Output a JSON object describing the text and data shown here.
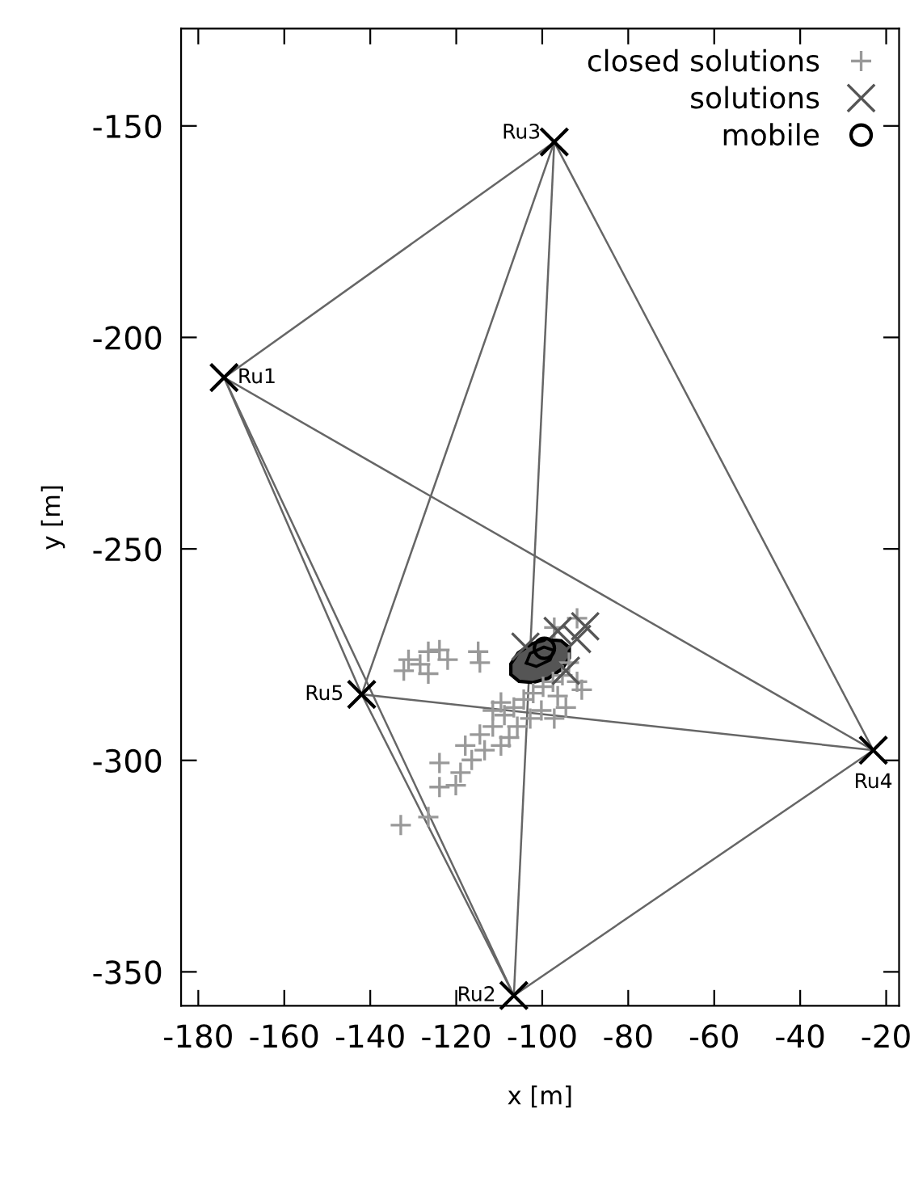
{
  "chart_data": {
    "type": "scatter",
    "xlabel": "x [m]",
    "ylabel": "y [m]",
    "xlim": [
      -184,
      -17
    ],
    "ylim": [
      -358,
      -127
    ],
    "xticks": [
      -180,
      -160,
      -140,
      -120,
      -100,
      -80,
      -60,
      -40,
      -20
    ],
    "yticks": [
      -350,
      -300,
      -250,
      -200,
      -150
    ],
    "grid": false,
    "legend": "top right",
    "series": [
      {
        "type": "line",
        "color": "#666666",
        "x": [
          -174.0,
          -97.2
        ],
        "values": [
          -209.5,
          -153.8
        ]
      },
      {
        "type": "line",
        "color": "#666666",
        "x": [
          -174.0,
          -142.0
        ],
        "values": [
          -209.5,
          -284.4
        ]
      },
      {
        "type": "line",
        "color": "#666666",
        "x": [
          -174.0,
          -106.6
        ],
        "values": [
          -209.5,
          -355.6
        ]
      },
      {
        "type": "line",
        "color": "#666666",
        "x": [
          -174.0,
          -23.0
        ],
        "values": [
          -209.5,
          -297.6
        ]
      },
      {
        "type": "line",
        "color": "#666666",
        "x": [
          -97.2,
          -142.0
        ],
        "values": [
          -153.8,
          -284.4
        ]
      },
      {
        "type": "line",
        "color": "#666666",
        "x": [
          -97.2,
          -106.6
        ],
        "values": [
          -153.8,
          -355.6
        ]
      },
      {
        "type": "line",
        "color": "#666666",
        "x": [
          -97.2,
          -23.0
        ],
        "values": [
          -153.8,
          -297.6
        ]
      },
      {
        "type": "line",
        "color": "#666666",
        "x": [
          -142.0,
          -106.6
        ],
        "values": [
          -284.4,
          -355.6
        ]
      },
      {
        "type": "line",
        "color": "#666666",
        "x": [
          -142.0,
          -23.0
        ],
        "values": [
          -284.4,
          -297.6
        ]
      },
      {
        "type": "line",
        "color": "#666666",
        "x": [
          -106.6,
          -23.0
        ],
        "values": [
          -355.6,
          -297.6
        ]
      },
      {
        "name": "closed solutions",
        "marker": "plus",
        "color": "#999999",
        "x": [
          -131.1,
          -123.9,
          -122.0,
          -114.5,
          -132.2,
          -126.5,
          -128.4,
          -91.9,
          -97.2,
          -91.9,
          -94.5,
          -97.2,
          -90.8,
          -132.9,
          -126.5,
          -123.9,
          -120.1,
          -123.9,
          -117.9,
          -114.5,
          -109.6,
          -111.5,
          -108.8,
          -106.6,
          -104.3,
          -102.1,
          -99.8,
          -97.5,
          -95.3,
          -113.4,
          -116.4,
          -105.8,
          -107.7,
          -100.2,
          -102.8,
          -96.4,
          -111.5,
          -119.0,
          -109.6,
          -93.8,
          -114.9,
          -126.5
        ],
        "values": [
          -276.2,
          -273.9,
          -276.2,
          -276.9,
          -278.8,
          -279.5,
          -277.3,
          -266.4,
          -268.6,
          -281.4,
          -287.5,
          -290.1,
          -283.3,
          -315.3,
          -313.4,
          -306.3,
          -305.9,
          -300.6,
          -296.5,
          -293.9,
          -296.5,
          -292.0,
          -289.3,
          -287.5,
          -285.6,
          -284.1,
          -282.6,
          -281.4,
          -279.9,
          -297.6,
          -299.9,
          -292.0,
          -294.6,
          -288.2,
          -290.1,
          -284.8,
          -288.2,
          -302.9,
          -286.3,
          -276.9,
          -274.3,
          -274.3
        ]
      },
      {
        "name": "solutions",
        "marker": "cross",
        "color": "#555555",
        "x": [
          -103.9,
          -96.4,
          -91.9,
          -94.5,
          -90.0
        ],
        "values": [
          -273.1,
          -269.4,
          -271.3,
          -278.8,
          -268.3
        ]
      },
      {
        "type": "area",
        "color": "#555555",
        "x": [
          -93.7,
          -95.6,
          -98.8,
          -102.4,
          -105.6,
          -107.3,
          -107.3,
          -105.4,
          -102.2,
          -98.6,
          -95.4,
          -93.7,
          -93.7
        ],
        "values": [
          -273.3,
          -271.7,
          -271.4,
          -272.4,
          -274.6,
          -277.2,
          -279.7,
          -281.3,
          -281.6,
          -280.6,
          -278.4,
          -275.8,
          -273.3
        ]
      },
      {
        "type": "line",
        "color": "#000000",
        "x": [
          -103.7,
          -102.8,
          -99.6,
          -97.3
        ],
        "values": [
          -277.0,
          -274.7,
          -273.2,
          -274.0
        ]
      },
      {
        "type": "line",
        "color": "#000000",
        "x": [
          -103.7,
          -101.4,
          -98.2,
          -97.3
        ],
        "values": [
          -277.0,
          -277.8,
          -276.3,
          -274.0
        ]
      },
      {
        "name": "mobile",
        "marker": "circle",
        "color": "#000000",
        "x": [
          -99.5
        ],
        "values": [
          -273.5
        ]
      },
      {
        "marker": "cross",
        "color": "#000000",
        "x": [
          -174.0,
          -97.2,
          -142.0,
          -106.6,
          -23.0
        ],
        "values": [
          -209.5,
          -153.8,
          -284.4,
          -355.6,
          -297.6
        ]
      }
    ],
    "annotations": [
      {
        "text": "Ru1",
        "x": -174.0,
        "y": -209.5
      },
      {
        "text": "Ru3",
        "x": -97.2,
        "y": -153.8
      },
      {
        "text": "Ru5",
        "x": -142.0,
        "y": -284.4
      },
      {
        "text": "Ru2",
        "x": -106.6,
        "y": -355.6
      },
      {
        "text": "Ru4",
        "x": -23.0,
        "y": -297.6
      }
    ]
  }
}
